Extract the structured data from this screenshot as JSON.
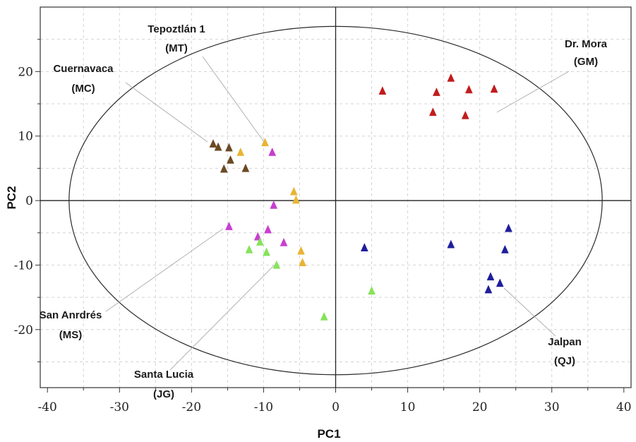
{
  "chart_data": {
    "type": "scatter",
    "title": "",
    "xlabel": "PC1",
    "ylabel": "PC2",
    "xlim": [
      -41,
      41
    ],
    "ylim": [
      -29,
      30
    ],
    "xticks": [
      -40,
      -30,
      -20,
      -10,
      0,
      10,
      20,
      30,
      40
    ],
    "yticks": [
      -20,
      -10,
      0,
      10,
      20
    ],
    "xtick_labels": [
      "-40",
      "-30",
      "-20",
      "-10",
      "0",
      "10",
      "20",
      "30",
      "40"
    ],
    "ytick_labels": [
      "-20",
      "-10",
      "0",
      "10",
      "20"
    ],
    "grid": true,
    "marker": "triangle",
    "confidence_ellipse": {
      "cx": 0,
      "cy": 0,
      "rx": 37,
      "ry": 27
    },
    "groups": [
      {
        "id": "GM",
        "line1": "Dr. Mora",
        "line2": "(GM)",
        "color": "#c21c1c",
        "points": [
          [
            6.5,
            17
          ],
          [
            16,
            19
          ],
          [
            14,
            16.8
          ],
          [
            18.5,
            17.2
          ],
          [
            22,
            17.3
          ],
          [
            13.5,
            13.7
          ],
          [
            18,
            13.2
          ]
        ]
      },
      {
        "id": "MC",
        "line1": "Cuernavaca",
        "line2": "(MC)",
        "color": "#6b4a23",
        "points": [
          [
            -17,
            8.8
          ],
          [
            -16.3,
            8.3
          ],
          [
            -14.8,
            8.2
          ],
          [
            -14.6,
            6.3
          ],
          [
            -15.5,
            4.9
          ],
          [
            -12.5,
            5
          ]
        ]
      },
      {
        "id": "MT",
        "line1": "Tepoztlán 1",
        "line2": "(MT)",
        "color": "#e8b533",
        "points": [
          [
            -13.2,
            7.5
          ],
          [
            -9.8,
            9
          ],
          [
            -5.8,
            1.4
          ],
          [
            -5.5,
            0.1
          ],
          [
            -4.8,
            -7.8
          ],
          [
            -4.6,
            -9.6
          ]
        ]
      },
      {
        "id": "MS",
        "line1": "San Anrdrés",
        "line2": "(MS)",
        "color": "#c93ed0",
        "points": [
          [
            -8.8,
            7.5
          ],
          [
            -8.6,
            -0.7
          ],
          [
            -14.8,
            -4
          ],
          [
            -10.8,
            -5.6
          ],
          [
            -9.4,
            -4.5
          ],
          [
            -7.2,
            -6.5
          ]
        ]
      },
      {
        "id": "JG",
        "line1": "Santa Lucia",
        "line2": "(JG)",
        "color": "#86e35a",
        "points": [
          [
            -12,
            -7.6
          ],
          [
            -10.5,
            -6.4
          ],
          [
            -9.6,
            -8
          ],
          [
            -8.2,
            -10
          ],
          [
            -1.6,
            -18
          ],
          [
            5,
            -14
          ]
        ]
      },
      {
        "id": "QJ",
        "line1": "Jalpan",
        "line2": "(QJ)",
        "color": "#1e1e9c",
        "points": [
          [
            4,
            -7.3
          ],
          [
            16,
            -6.8
          ],
          [
            24,
            -4.3
          ],
          [
            23.5,
            -7.6
          ],
          [
            21.5,
            -11.8
          ],
          [
            22.8,
            -12.8
          ],
          [
            21.2,
            -13.8
          ]
        ]
      }
    ]
  }
}
